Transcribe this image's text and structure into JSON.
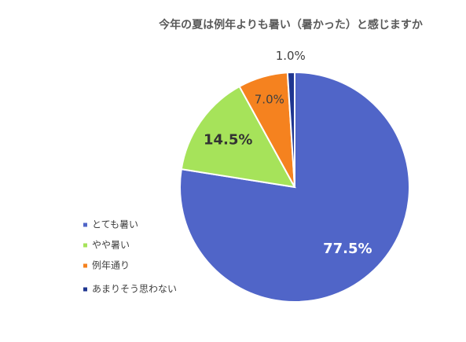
{
  "chart_data": {
    "type": "pie",
    "title": "今年の夏は例年よりも暑い（暑かった）と感じますか",
    "categories": [
      "とても暑い",
      "やや暑い",
      "例年通り",
      "あまりそう思わない"
    ],
    "values": [
      77.5,
      14.5,
      7.0,
      1.0
    ],
    "value_labels": [
      "77.5%",
      "14.5%",
      "7.0%",
      "1.0%"
    ],
    "colors": [
      "#5065c8",
      "#a6e35a",
      "#f5821f",
      "#1f3690"
    ],
    "legend": "left"
  }
}
